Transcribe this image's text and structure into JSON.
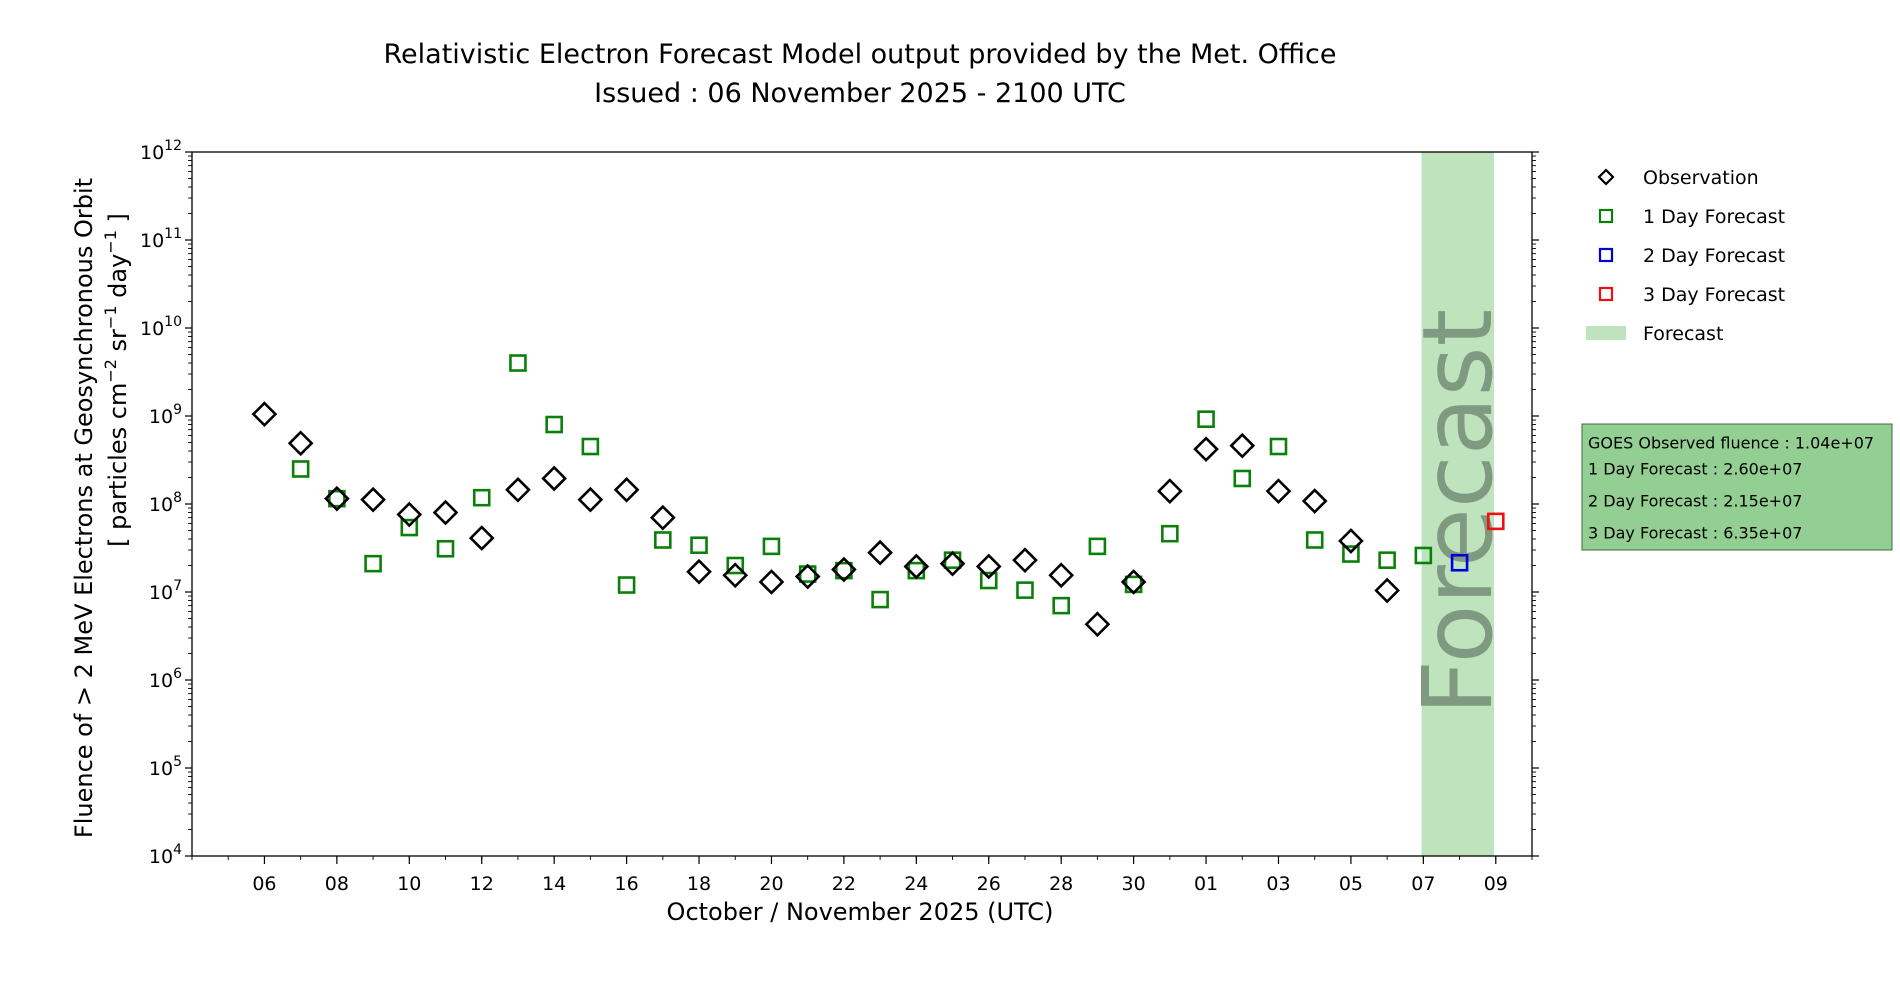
{
  "chart_data": {
    "type": "scatter",
    "title": "Relativistic Electron Forecast Model output provided by the Met. Office",
    "subtitle": "Issued : 06 November 2025 - 2100 UTC",
    "xlabel": "October / November 2025 (UTC)",
    "ylabel_line1": "Fluence of > 2 MeV Electrons at Geosynchronous Orbit",
    "ylabel_line2_parts": {
      "pre": "[ particles cm",
      "exp1": "−2",
      "mid": " sr",
      "exp2": "−1",
      "mid2": " day",
      "exp3": "−1",
      "post": " ]"
    },
    "yscale": "log",
    "ylim": [
      10000,
      1000000000000
    ],
    "y_ticks": [
      {
        "value": 10000,
        "base": "10",
        "exp": "4"
      },
      {
        "value": 100000,
        "base": "10",
        "exp": "5"
      },
      {
        "value": 1000000,
        "base": "10",
        "exp": "6"
      },
      {
        "value": 10000000,
        "base": "10",
        "exp": "7"
      },
      {
        "value": 100000000,
        "base": "10",
        "exp": "8"
      },
      {
        "value": 1000000000,
        "base": "10",
        "exp": "9"
      },
      {
        "value": 10000000000,
        "base": "10",
        "exp": "10"
      },
      {
        "value": 100000000000,
        "base": "10",
        "exp": "11"
      },
      {
        "value": 1000000000000,
        "base": "10",
        "exp": "12"
      }
    ],
    "xlim": [
      "2025-10-04",
      "2025-11-10"
    ],
    "x_ticks": [
      {
        "date": "2025-10-06",
        "label": "06"
      },
      {
        "date": "2025-10-08",
        "label": "08"
      },
      {
        "date": "2025-10-10",
        "label": "10"
      },
      {
        "date": "2025-10-12",
        "label": "12"
      },
      {
        "date": "2025-10-14",
        "label": "14"
      },
      {
        "date": "2025-10-16",
        "label": "16"
      },
      {
        "date": "2025-10-18",
        "label": "18"
      },
      {
        "date": "2025-10-20",
        "label": "20"
      },
      {
        "date": "2025-10-22",
        "label": "22"
      },
      {
        "date": "2025-10-24",
        "label": "24"
      },
      {
        "date": "2025-10-26",
        "label": "26"
      },
      {
        "date": "2025-10-28",
        "label": "28"
      },
      {
        "date": "2025-10-30",
        "label": "30"
      },
      {
        "date": "2025-11-01",
        "label": "01"
      },
      {
        "date": "2025-11-03",
        "label": "03"
      },
      {
        "date": "2025-11-05",
        "label": "05"
      },
      {
        "date": "2025-11-07",
        "label": "07"
      },
      {
        "date": "2025-11-09",
        "label": "09"
      }
    ],
    "grid": false,
    "legend_position": "outside-right-top",
    "forecast_region": {
      "start": "2025-11-07",
      "end": "2025-11-09",
      "color": "#bfe4bd",
      "watermark": "Forecast",
      "watermark_color": "#7f9a80"
    },
    "series": [
      {
        "name": "Observation",
        "marker": "diamond",
        "color": "#000000",
        "points": [
          [
            "2025-10-06",
            1050000000.0
          ],
          [
            "2025-10-07",
            490000000.0
          ],
          [
            "2025-10-08",
            115000000.0
          ],
          [
            "2025-10-09",
            112000000.0
          ],
          [
            "2025-10-10",
            76000000.0
          ],
          [
            "2025-10-11",
            80000000.0
          ],
          [
            "2025-10-12",
            41000000.0
          ],
          [
            "2025-10-13",
            145000000.0
          ],
          [
            "2025-10-14",
            195000000.0
          ],
          [
            "2025-10-15",
            112000000.0
          ],
          [
            "2025-10-16",
            145000000.0
          ],
          [
            "2025-10-17",
            70000000.0
          ],
          [
            "2025-10-18",
            17000000.0
          ],
          [
            "2025-10-19",
            15500000.0
          ],
          [
            "2025-10-20",
            13000000.0
          ],
          [
            "2025-10-21",
            15000000.0
          ],
          [
            "2025-10-22",
            18000000.0
          ],
          [
            "2025-10-23",
            28000000.0
          ],
          [
            "2025-10-24",
            19500000.0
          ],
          [
            "2025-10-25",
            21000000.0
          ],
          [
            "2025-10-26",
            19500000.0
          ],
          [
            "2025-10-27",
            23000000.0
          ],
          [
            "2025-10-28",
            15500000.0
          ],
          [
            "2025-10-29",
            4300000.0
          ],
          [
            "2025-10-30",
            13000000.0
          ],
          [
            "2025-10-31",
            140000000.0
          ],
          [
            "2025-11-01",
            420000000.0
          ],
          [
            "2025-11-02",
            460000000.0
          ],
          [
            "2025-11-03",
            140000000.0
          ],
          [
            "2025-11-04",
            108000000.0
          ],
          [
            "2025-11-05",
            38000000.0
          ],
          [
            "2025-11-06",
            10400000.0
          ]
        ]
      },
      {
        "name": "1 Day Forecast",
        "marker": "square",
        "color": "#0a800a",
        "points": [
          [
            "2025-10-07",
            250000000.0
          ],
          [
            "2025-10-08",
            115000000.0
          ],
          [
            "2025-10-09",
            21000000.0
          ],
          [
            "2025-10-10",
            54000000.0
          ],
          [
            "2025-10-11",
            31000000.0
          ],
          [
            "2025-10-12",
            118000000.0
          ],
          [
            "2025-10-13",
            4000000000.0
          ],
          [
            "2025-10-14",
            800000000.0
          ],
          [
            "2025-10-15",
            450000000.0
          ],
          [
            "2025-10-16",
            12000000.0
          ],
          [
            "2025-10-17",
            39000000.0
          ],
          [
            "2025-10-18",
            34000000.0
          ],
          [
            "2025-10-19",
            20000000.0
          ],
          [
            "2025-10-20",
            33000000.0
          ],
          [
            "2025-10-21",
            16000000.0
          ],
          [
            "2025-10-22",
            17500000.0
          ],
          [
            "2025-10-23",
            8200000.0
          ],
          [
            "2025-10-24",
            17500000.0
          ],
          [
            "2025-10-25",
            23000000.0
          ],
          [
            "2025-10-26",
            13500000.0
          ],
          [
            "2025-10-27",
            10500000.0
          ],
          [
            "2025-10-28",
            7000000.0
          ],
          [
            "2025-10-29",
            33000000.0
          ],
          [
            "2025-10-30",
            12200000.0
          ],
          [
            "2025-10-31",
            46000000.0
          ],
          [
            "2025-11-01",
            920000000.0
          ],
          [
            "2025-11-02",
            195000000.0
          ],
          [
            "2025-11-03",
            450000000.0
          ],
          [
            "2025-11-04",
            39000000.0
          ],
          [
            "2025-11-05",
            27000000.0
          ],
          [
            "2025-11-06",
            23000000.0
          ],
          [
            "2025-11-07",
            26000000.0
          ]
        ]
      },
      {
        "name": "2 Day Forecast",
        "marker": "square",
        "color": "#0000dd",
        "points": [
          [
            "2025-11-08",
            21500000.0
          ]
        ]
      },
      {
        "name": "3 Day Forecast",
        "marker": "square",
        "color": "#ee1111",
        "points": [
          [
            "2025-11-09",
            63500000.0
          ]
        ]
      }
    ],
    "legend": [
      {
        "label": "Observation",
        "marker": "diamond",
        "color": "#000000"
      },
      {
        "label": "1 Day Forecast",
        "marker": "square",
        "color": "#0a800a"
      },
      {
        "label": "2 Day Forecast",
        "marker": "square",
        "color": "#0000dd"
      },
      {
        "label": "3 Day Forecast",
        "marker": "square",
        "color": "#ee1111"
      },
      {
        "label": "Forecast",
        "marker": "patch",
        "color": "#bfe4bd"
      }
    ],
    "info_box": {
      "background": "#93cf93",
      "lines": [
        "GOES Observed fluence : 1.04e+07",
        "1 Day Forecast : 2.60e+07",
        "2 Day Forecast : 2.15e+07",
        "3 Day Forecast : 6.35e+07"
      ]
    }
  }
}
